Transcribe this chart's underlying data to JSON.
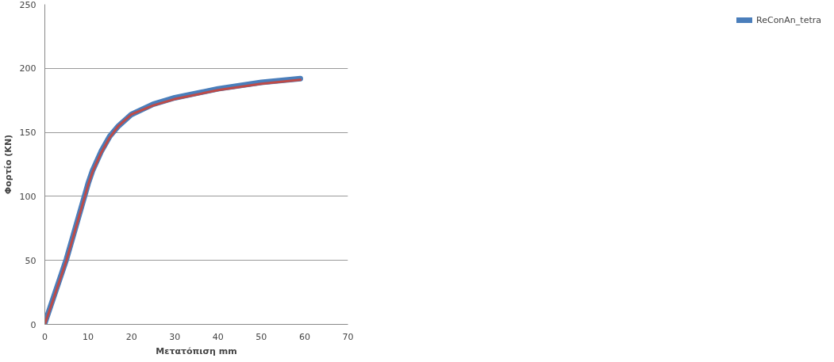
{
  "chart_data": {
    "type": "line",
    "xlabel": "Μετατόπιση mm",
    "ylabel": "Φορτίο (KN)",
    "xlim": [
      0,
      70
    ],
    "xticks": [
      0,
      10,
      20,
      30,
      40,
      50,
      60,
      70
    ],
    "ylim": [
      0,
      250
    ],
    "yticks": [
      0,
      50,
      100,
      150,
      200,
      250
    ],
    "grid": "y",
    "legend": "right",
    "marker": "none",
    "series": [
      {
        "name": "ReConAn_tetra",
        "color": "#4a7ebb",
        "x": [
          0,
          5,
          10,
          11,
          13,
          15,
          17,
          20,
          25,
          30,
          40,
          50,
          59
        ],
        "values": [
          1,
          51,
          110,
          120,
          135,
          147,
          155,
          164,
          172,
          177,
          184,
          189,
          192
        ]
      },
      {
        "color": "#be4b48",
        "x": [
          0,
          5,
          10,
          11,
          13,
          15,
          17,
          20,
          25,
          30,
          40,
          50,
          59
        ],
        "values": [
          0,
          50,
          109,
          119,
          134,
          146,
          155,
          164,
          171,
          176,
          183,
          188,
          191
        ]
      }
    ]
  }
}
